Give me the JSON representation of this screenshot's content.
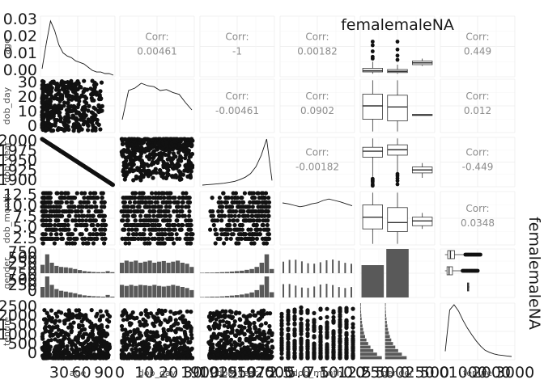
{
  "chart_data": {
    "type": "scatter",
    "kind": "pairs-matrix",
    "variables": [
      "age",
      "dob_day",
      "dob_year",
      "dob_month",
      "gender",
      "tenure"
    ],
    "correlations": [
      {
        "row": "age",
        "col": "dob_day",
        "label": "Corr:",
        "value": "0.00461"
      },
      {
        "row": "age",
        "col": "dob_year",
        "label": "Corr:",
        "value": "-1"
      },
      {
        "row": "age",
        "col": "dob_month",
        "label": "Corr:",
        "value": "0.00182"
      },
      {
        "row": "age",
        "col": "tenure",
        "label": "Corr:",
        "value": "0.449"
      },
      {
        "row": "dob_day",
        "col": "dob_year",
        "label": "Corr:",
        "value": "-0.00461"
      },
      {
        "row": "dob_day",
        "col": "dob_month",
        "label": "Corr:",
        "value": "0.0902"
      },
      {
        "row": "dob_day",
        "col": "tenure",
        "label": "Corr:",
        "value": "0.012"
      },
      {
        "row": "dob_year",
        "col": "dob_month",
        "label": "Corr:",
        "value": "-0.00182"
      },
      {
        "row": "dob_year",
        "col": "tenure",
        "label": "Corr:",
        "value": "-0.449"
      },
      {
        "row": "dob_month",
        "col": "tenure",
        "label": "Corr:",
        "value": "0.0348"
      }
    ],
    "gender_levels": [
      "female",
      "male",
      "NA"
    ],
    "gender_strip_top": "femalemaleNA",
    "gender_strip_right": "femalemaleNA",
    "x_tick_labels": {
      "age": [
        "30",
        "60",
        "90"
      ],
      "dob_day": [
        "0",
        "10",
        "20",
        "30"
      ],
      "dob_year": [
        "1900",
        "1925",
        "1950",
        "1975",
        "2000"
      ],
      "dob_month": [
        "2.5",
        "5.0",
        "7.5",
        "10.0",
        "12.5"
      ],
      "gender": [
        "0",
        "250",
        "500",
        "0",
        "250",
        "500"
      ],
      "tenure": [
        "0",
        "1000",
        "2000",
        "3000"
      ]
    },
    "y_tick_labels": {
      "age": [
        "0.03",
        "0.02",
        "0.01",
        "0.00"
      ],
      "dob_day": [
        "30",
        "20",
        "10",
        "0"
      ],
      "dob_year": [
        "2000",
        "1975",
        "1950",
        "1925",
        "1900"
      ],
      "dob_month": [
        "12.5",
        "10.0",
        "7.5",
        "5.0",
        "2.5"
      ],
      "gender": [
        "750",
        "500",
        "250",
        "0",
        "750",
        "500",
        "250",
        "0"
      ],
      "tenure": [
        "2500",
        "2000",
        "1500",
        "1000",
        "500",
        "0"
      ]
    },
    "age_density_y": [
      0.004,
      0.02,
      0.034,
      0.028,
      0.019,
      0.014,
      0.012,
      0.011,
      0.009,
      0.008,
      0.007,
      0.005,
      0.003,
      0.002,
      0.002,
      0.001,
      0.001,
      0.0
    ],
    "dob_day_density_y": [
      0.2,
      0.8,
      0.85,
      0.95,
      0.9,
      0.88,
      0.8,
      0.82,
      0.76,
      0.72,
      0.55,
      0.4
    ],
    "dob_year_density_y": [
      0.0,
      0.01,
      0.02,
      0.03,
      0.04,
      0.06,
      0.08,
      0.12,
      0.17,
      0.25,
      0.4,
      0.65,
      1.0,
      0.1
    ],
    "dob_month_density_y": [
      0.8,
      0.78,
      0.75,
      0.72,
      0.74,
      0.78,
      0.8,
      0.85,
      0.88,
      0.85,
      0.82,
      0.78,
      0.74
    ],
    "tenure_density_y": [
      0.1,
      0.9,
      1.0,
      0.88,
      0.7,
      0.55,
      0.42,
      0.3,
      0.2,
      0.12,
      0.08,
      0.05,
      0.03,
      0.02,
      0.01,
      0.0
    ],
    "gender_bar_counts": [
      {
        "level": "female",
        "count": 400
      },
      {
        "level": "male",
        "count": 600
      },
      {
        "level": "NA",
        "count": 0
      }
    ],
    "grid": true
  }
}
